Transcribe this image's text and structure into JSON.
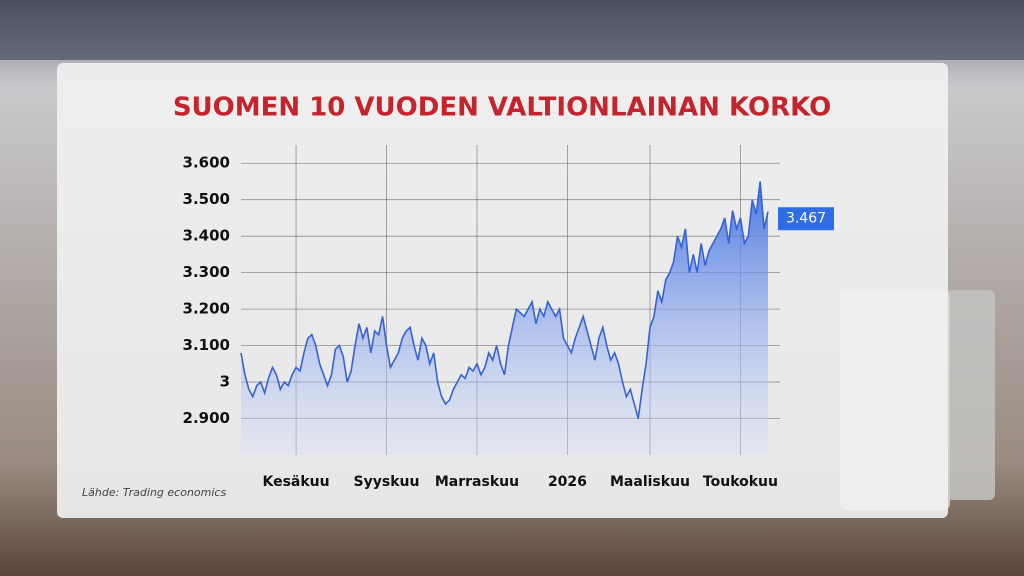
{
  "chart_data": {
    "type": "area",
    "title": "SUOMEN 10 VUODEN VALTIONLAINAN KORKO",
    "source": "Lähde: Trading economics",
    "categories": [
      null,
      null,
      null,
      null,
      null,
      null,
      null,
      null,
      null,
      null,
      null,
      null,
      null,
      null,
      "Kesäkuu",
      null,
      null,
      null,
      null,
      null,
      null,
      null,
      null,
      null,
      null,
      null,
      null,
      null,
      null,
      null,
      null,
      null,
      null,
      null,
      null,
      null,
      null,
      "Syyskuu",
      null,
      null,
      null,
      null,
      null,
      null,
      null,
      null,
      null,
      null,
      null,
      null,
      null,
      null,
      null,
      null,
      null,
      null,
      null,
      null,
      null,
      null,
      "Marraskuu",
      null,
      null,
      null,
      null,
      null,
      null,
      null,
      null,
      null,
      null,
      null,
      null,
      null,
      null,
      null,
      null,
      null,
      null,
      null,
      null,
      null,
      null,
      "2026",
      null,
      null,
      null,
      null,
      null,
      null,
      null,
      null,
      null,
      null,
      null,
      null,
      null,
      null,
      null,
      null,
      null,
      null,
      null,
      null,
      "Maaliskuu",
      null,
      null,
      null,
      null,
      null,
      null,
      null,
      null,
      null,
      null,
      null,
      null,
      null,
      null,
      null,
      null,
      null,
      null,
      null,
      null,
      null,
      null,
      "Toukokuu",
      null,
      null,
      null,
      null,
      null,
      null,
      null
    ],
    "values": [
      3.08,
      3.02,
      2.98,
      2.96,
      2.99,
      3.0,
      2.97,
      3.01,
      3.04,
      3.02,
      2.98,
      3.0,
      2.99,
      3.02,
      3.04,
      3.03,
      3.08,
      3.12,
      3.13,
      3.1,
      3.05,
      3.02,
      2.99,
      3.02,
      3.09,
      3.1,
      3.07,
      3.0,
      3.03,
      3.1,
      3.16,
      3.12,
      3.15,
      3.08,
      3.14,
      3.13,
      3.18,
      3.1,
      3.04,
      3.06,
      3.08,
      3.12,
      3.14,
      3.15,
      3.1,
      3.06,
      3.12,
      3.1,
      3.05,
      3.08,
      3.0,
      2.96,
      2.94,
      2.95,
      2.98,
      3.0,
      3.02,
      3.01,
      3.04,
      3.03,
      3.05,
      3.02,
      3.04,
      3.08,
      3.06,
      3.1,
      3.05,
      3.02,
      3.1,
      3.15,
      3.2,
      3.19,
      3.18,
      3.2,
      3.22,
      3.16,
      3.2,
      3.18,
      3.22,
      3.2,
      3.18,
      3.2,
      3.12,
      3.1,
      3.08,
      3.12,
      3.15,
      3.18,
      3.14,
      3.1,
      3.06,
      3.12,
      3.15,
      3.1,
      3.06,
      3.08,
      3.05,
      3.0,
      2.96,
      2.98,
      2.94,
      2.9,
      2.98,
      3.05,
      3.15,
      3.18,
      3.25,
      3.22,
      3.28,
      3.3,
      3.33,
      3.4,
      3.37,
      3.42,
      3.3,
      3.35,
      3.3,
      3.38,
      3.32,
      3.36,
      3.38,
      3.4,
      3.42,
      3.45,
      3.38,
      3.47,
      3.42,
      3.45,
      3.38,
      3.4,
      3.5,
      3.46,
      3.55,
      3.42,
      3.467
    ],
    "color": "#3562d6",
    "label_color": "#2f6de6",
    "title_color": "#c4242c",
    "ylim": [
      2.8,
      3.65
    ],
    "yticks": [
      {
        "value": 2.9,
        "label": "2.900"
      },
      3,
      {
        "value": 3.1,
        "label": "3.100"
      },
      {
        "value": 3.2,
        "label": "3.200"
      },
      {
        "value": 3.3,
        "label": "3.300"
      },
      {
        "value": 3.4,
        "label": "3.400"
      },
      {
        "value": 3.5,
        "label": "3.500"
      },
      {
        "value": 3.6,
        "label": "3.600"
      }
    ],
    "grid": true
  }
}
